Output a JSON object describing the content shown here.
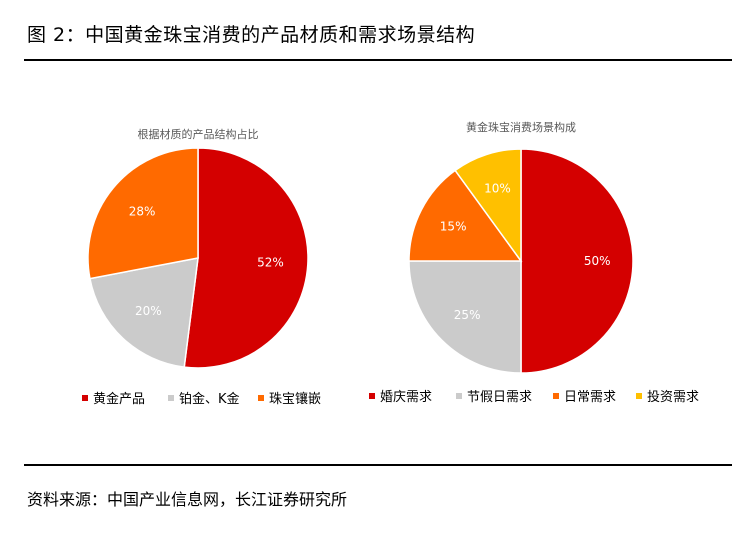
{
  "figure_title": "图 2：中国黄金珠宝消费的产品材质和需求场景结构",
  "source_text": "资料来源：中国产业信息网，长江证券研究所",
  "colors": {
    "red": "#D40000",
    "gray": "#CBCBCB",
    "orange": "#FF6A00",
    "yellow": "#FFC000"
  },
  "chart_data": [
    {
      "type": "pie",
      "title": "根据材质的产品结构占比",
      "categories": [
        "黄金产品",
        "铂金、K金",
        "珠宝镶嵌"
      ],
      "values": [
        52,
        20,
        28
      ],
      "labels": [
        "52%",
        "20%",
        "28%"
      ],
      "colors": [
        "#D40000",
        "#CBCBCB",
        "#FF6A00"
      ],
      "legend": "bottom"
    },
    {
      "type": "pie",
      "title": "黄金珠宝消费场景构成",
      "categories": [
        "婚庆需求",
        "节假日需求",
        "日常需求",
        "投资需求"
      ],
      "values": [
        50,
        25,
        15,
        10
      ],
      "labels": [
        "50%",
        "25%",
        "15%",
        "10%"
      ],
      "colors": [
        "#D40000",
        "#CBCBCB",
        "#FF6A00",
        "#FFC000"
      ],
      "legend": "bottom"
    }
  ]
}
